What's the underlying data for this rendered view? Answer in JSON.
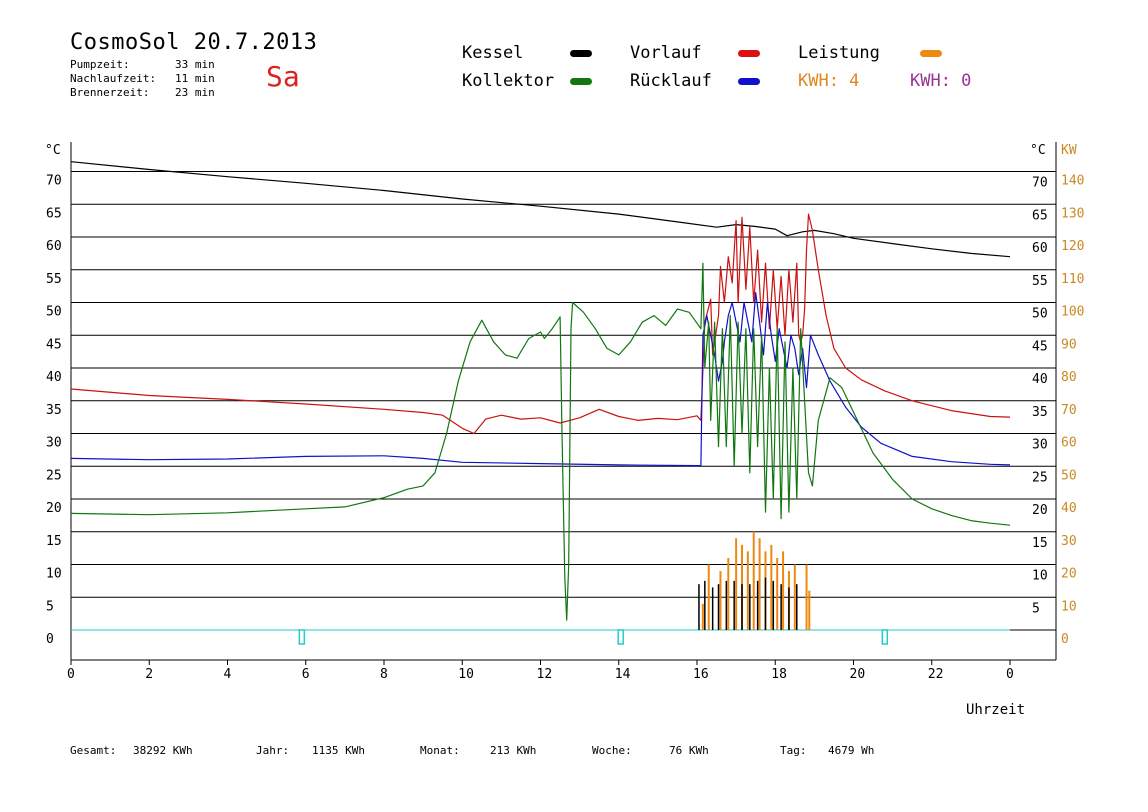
{
  "header": {
    "title": "CosmoSol 20.7.2013",
    "day": "Sa",
    "stats": [
      {
        "label": "Pumpzeit:",
        "value": "33 min"
      },
      {
        "label": "Nachlaufzeit:",
        "value": "11 min"
      },
      {
        "label": "Brennerzeit:",
        "value": "23 min"
      }
    ]
  },
  "legend": {
    "kessel": {
      "label": "Kessel",
      "color": "#000000"
    },
    "kollektor": {
      "label": "Kollektor",
      "color": "#117711"
    },
    "vorlauf": {
      "label": "Vorlauf",
      "color": "#dd1111"
    },
    "ruecklauf": {
      "label": "Rücklauf",
      "color": "#1111cc"
    },
    "leistung": {
      "label": "Leistung",
      "color": "#ee8811"
    },
    "kwh1": {
      "label": "KWH: 4",
      "color": "#dd8822"
    },
    "kwh2": {
      "label": "KWH: 0",
      "color": "#993399"
    }
  },
  "footer": {
    "gesamt_label": "Gesamt:",
    "gesamt_value": "38292 KWh",
    "jahr_label": "Jahr:",
    "jahr_value": "1135 KWh",
    "monat_label": "Monat:",
    "monat_value": "213 KWh",
    "woche_label": "Woche:",
    "woche_value": "76 KWh",
    "tag_label": "Tag:",
    "tag_value": "4679 Wh"
  },
  "chart_data": {
    "type": "line",
    "xlabel": "Uhrzeit",
    "ylabel_left": "°C",
    "ylabel_right_temp": "°C",
    "ylabel_right_power": "KW",
    "xlim": [
      0,
      24
    ],
    "ylim": [
      0,
      75
    ],
    "y2lim": [
      0,
      150
    ],
    "x_ticks": [
      "0",
      "2",
      "4",
      "6",
      "8",
      "10",
      "12",
      "14",
      "16",
      "18",
      "20",
      "22",
      "0"
    ],
    "y_ticks_left": [
      "70",
      "65",
      "60",
      "55",
      "50",
      "45",
      "40",
      "35",
      "30",
      "25",
      "20",
      "15",
      "10",
      "5",
      "0"
    ],
    "y_ticks_right_temp": [
      "70",
      "65",
      "60",
      "55",
      "50",
      "45",
      "40",
      "35",
      "30",
      "25",
      "20",
      "15",
      "10",
      "5"
    ],
    "y_ticks_right_power": [
      "140",
      "130",
      "120",
      "110",
      "100",
      "90",
      "80",
      "70",
      "60",
      "50",
      "40",
      "30",
      "20",
      "10",
      "0"
    ],
    "grid": true,
    "legend_placement": "top",
    "series": [
      {
        "name": "Kessel",
        "color": "#000000",
        "width": 1.2,
        "points": [
          [
            0,
            71.5
          ],
          [
            2,
            70.3
          ],
          [
            4,
            69.2
          ],
          [
            6,
            68.2
          ],
          [
            8,
            67.1
          ],
          [
            10,
            65.8
          ],
          [
            12,
            64.7
          ],
          [
            14,
            63.5
          ],
          [
            15.5,
            62.3
          ],
          [
            16.5,
            61.5
          ],
          [
            17,
            61.9
          ],
          [
            17.5,
            61.6
          ],
          [
            18,
            61.2
          ],
          [
            18.3,
            60.2
          ],
          [
            18.7,
            60.8
          ],
          [
            19,
            61
          ],
          [
            19.5,
            60.5
          ],
          [
            20,
            59.8
          ],
          [
            21,
            59
          ],
          [
            22,
            58.2
          ],
          [
            23,
            57.5
          ],
          [
            24,
            57
          ]
        ]
      },
      {
        "name": "Vorlauf",
        "color": "#cc1111",
        "width": 1.2,
        "points": [
          [
            0,
            36.8
          ],
          [
            2,
            35.8
          ],
          [
            4,
            35.2
          ],
          [
            6,
            34.5
          ],
          [
            8,
            33.7
          ],
          [
            9,
            33.2
          ],
          [
            9.5,
            32.8
          ],
          [
            10,
            30.8
          ],
          [
            10.3,
            30
          ],
          [
            10.6,
            32.2
          ],
          [
            11,
            32.8
          ],
          [
            11.5,
            32.2
          ],
          [
            12,
            32.4
          ],
          [
            12.5,
            31.6
          ],
          [
            13,
            32.4
          ],
          [
            13.5,
            33.7
          ],
          [
            14,
            32.6
          ],
          [
            14.5,
            32
          ],
          [
            15,
            32.3
          ],
          [
            15.5,
            32.1
          ],
          [
            16,
            32.7
          ],
          [
            16.1,
            32
          ],
          [
            16.2,
            47
          ],
          [
            16.35,
            50.5
          ],
          [
            16.4,
            42
          ],
          [
            16.5,
            46
          ],
          [
            16.55,
            48
          ],
          [
            16.6,
            55.5
          ],
          [
            16.7,
            50
          ],
          [
            16.8,
            57
          ],
          [
            16.9,
            53
          ],
          [
            17,
            62.5
          ],
          [
            17.05,
            50
          ],
          [
            17.15,
            63
          ],
          [
            17.25,
            52
          ],
          [
            17.35,
            61.5
          ],
          [
            17.45,
            50
          ],
          [
            17.55,
            58
          ],
          [
            17.65,
            47
          ],
          [
            17.75,
            56
          ],
          [
            17.85,
            46
          ],
          [
            17.95,
            55
          ],
          [
            18.05,
            46
          ],
          [
            18.15,
            54
          ],
          [
            18.25,
            45
          ],
          [
            18.35,
            55
          ],
          [
            18.45,
            47
          ],
          [
            18.55,
            56
          ],
          [
            18.6,
            45
          ],
          [
            18.65,
            44
          ],
          [
            18.7,
            45
          ],
          [
            18.75,
            49
          ],
          [
            18.8,
            58
          ],
          [
            18.85,
            63.5
          ],
          [
            18.95,
            61
          ],
          [
            19.1,
            55
          ],
          [
            19.3,
            48
          ],
          [
            19.5,
            43
          ],
          [
            19.8,
            40
          ],
          [
            20.2,
            38.2
          ],
          [
            20.8,
            36.5
          ],
          [
            21.5,
            35
          ],
          [
            22.5,
            33.5
          ],
          [
            23.5,
            32.6
          ],
          [
            24,
            32.5
          ]
        ]
      },
      {
        "name": "Rücklauf",
        "color": "#1111cc",
        "width": 1.2,
        "points": [
          [
            0,
            26.2
          ],
          [
            2,
            26
          ],
          [
            4,
            26.1
          ],
          [
            6,
            26.5
          ],
          [
            8,
            26.6
          ],
          [
            9,
            26.2
          ],
          [
            10,
            25.6
          ],
          [
            12,
            25.4
          ],
          [
            14,
            25.2
          ],
          [
            16,
            25.1
          ],
          [
            16.1,
            25.1
          ],
          [
            16.15,
            45
          ],
          [
            16.25,
            48
          ],
          [
            16.35,
            45
          ],
          [
            16.45,
            42
          ],
          [
            16.55,
            38
          ],
          [
            16.65,
            41
          ],
          [
            16.7,
            44
          ],
          [
            16.8,
            48
          ],
          [
            16.9,
            50
          ],
          [
            17,
            47
          ],
          [
            17.1,
            44
          ],
          [
            17.2,
            50
          ],
          [
            17.3,
            47
          ],
          [
            17.4,
            44
          ],
          [
            17.5,
            51.5
          ],
          [
            17.6,
            47
          ],
          [
            17.7,
            42
          ],
          [
            17.8,
            50
          ],
          [
            17.9,
            45
          ],
          [
            18,
            41
          ],
          [
            18.1,
            46
          ],
          [
            18.2,
            43
          ],
          [
            18.3,
            40
          ],
          [
            18.4,
            45
          ],
          [
            18.5,
            43
          ],
          [
            18.6,
            39
          ],
          [
            18.7,
            43
          ],
          [
            18.8,
            37
          ],
          [
            18.9,
            45
          ],
          [
            19.1,
            42
          ],
          [
            19.4,
            38
          ],
          [
            19.8,
            34
          ],
          [
            20.2,
            31
          ],
          [
            20.7,
            28.5
          ],
          [
            21.5,
            26.5
          ],
          [
            22.5,
            25.7
          ],
          [
            23.5,
            25.3
          ],
          [
            24,
            25.2
          ]
        ]
      },
      {
        "name": "Kollektor",
        "color": "#117711",
        "width": 1.2,
        "points": [
          [
            0,
            17.8
          ],
          [
            2,
            17.6
          ],
          [
            4,
            17.9
          ],
          [
            6,
            18.5
          ],
          [
            7,
            18.8
          ],
          [
            8,
            20.2
          ],
          [
            8.6,
            21.5
          ],
          [
            9,
            22
          ],
          [
            9.3,
            24
          ],
          [
            9.6,
            30
          ],
          [
            9.9,
            38
          ],
          [
            10.2,
            44
          ],
          [
            10.5,
            47.3
          ],
          [
            10.8,
            44
          ],
          [
            11.1,
            42
          ],
          [
            11.4,
            41.5
          ],
          [
            11.7,
            44.5
          ],
          [
            12,
            45.5
          ],
          [
            12.1,
            44.5
          ],
          [
            12.3,
            46
          ],
          [
            12.5,
            47.8
          ],
          [
            12.55,
            30
          ],
          [
            12.62,
            8
          ],
          [
            12.67,
            1.5
          ],
          [
            12.72,
            10
          ],
          [
            12.78,
            46
          ],
          [
            12.82,
            50
          ],
          [
            13.1,
            48.5
          ],
          [
            13.4,
            46
          ],
          [
            13.7,
            43
          ],
          [
            14,
            42
          ],
          [
            14.3,
            44
          ],
          [
            14.6,
            47
          ],
          [
            14.9,
            48
          ],
          [
            15.2,
            46.5
          ],
          [
            15.5,
            49
          ],
          [
            15.8,
            48.5
          ],
          [
            16.1,
            46
          ],
          [
            16.15,
            56
          ],
          [
            16.2,
            40
          ],
          [
            16.3,
            47
          ],
          [
            16.35,
            32
          ],
          [
            16.45,
            47
          ],
          [
            16.55,
            28
          ],
          [
            16.65,
            46
          ],
          [
            16.75,
            28
          ],
          [
            16.85,
            48
          ],
          [
            16.95,
            25
          ],
          [
            17.05,
            47
          ],
          [
            17.15,
            30
          ],
          [
            17.25,
            46
          ],
          [
            17.35,
            24
          ],
          [
            17.45,
            46
          ],
          [
            17.55,
            28
          ],
          [
            17.65,
            45
          ],
          [
            17.75,
            18
          ],
          [
            17.85,
            40
          ],
          [
            17.95,
            20
          ],
          [
            18.05,
            46
          ],
          [
            18.15,
            17
          ],
          [
            18.25,
            44
          ],
          [
            18.35,
            18
          ],
          [
            18.45,
            40
          ],
          [
            18.55,
            20
          ],
          [
            18.65,
            46
          ],
          [
            18.75,
            35
          ],
          [
            18.85,
            24
          ],
          [
            18.95,
            22
          ],
          [
            19.1,
            32
          ],
          [
            19.4,
            38.5
          ],
          [
            19.7,
            37
          ],
          [
            20.1,
            32
          ],
          [
            20.5,
            27
          ],
          [
            21,
            23
          ],
          [
            21.5,
            20
          ],
          [
            22,
            18.5
          ],
          [
            22.5,
            17.5
          ],
          [
            23,
            16.7
          ],
          [
            23.5,
            16.3
          ],
          [
            24,
            16
          ]
        ]
      }
    ],
    "power_series": {
      "name": "Leistung",
      "color": "#ee8811",
      "pulses": [
        [
          16.15,
          4
        ],
        [
          16.3,
          10
        ],
        [
          16.6,
          9
        ],
        [
          16.8,
          11
        ],
        [
          17.0,
          14
        ],
        [
          17.15,
          13
        ],
        [
          17.3,
          12
        ],
        [
          17.45,
          15
        ],
        [
          17.6,
          14
        ],
        [
          17.75,
          12
        ],
        [
          17.9,
          13
        ],
        [
          18.05,
          11
        ],
        [
          18.2,
          12
        ],
        [
          18.35,
          9
        ],
        [
          18.5,
          10
        ],
        [
          18.8,
          10
        ],
        [
          18.87,
          6
        ]
      ]
    },
    "burner_series": {
      "name": "Kessel Brenner",
      "color": "#000000",
      "pulses": [
        [
          16.05,
          7
        ],
        [
          16.2,
          7.5
        ],
        [
          16.4,
          6.5
        ],
        [
          16.55,
          7
        ],
        [
          16.75,
          7.5
        ],
        [
          16.95,
          7.5
        ],
        [
          17.15,
          7
        ],
        [
          17.35,
          7
        ],
        [
          17.55,
          7.5
        ],
        [
          17.75,
          8
        ],
        [
          17.95,
          7.5
        ],
        [
          18.15,
          7
        ],
        [
          18.35,
          6.5
        ],
        [
          18.55,
          7
        ]
      ]
    },
    "markers": [
      5.9,
      14.05,
      20.8
    ],
    "marker_color": "#22cccc"
  }
}
